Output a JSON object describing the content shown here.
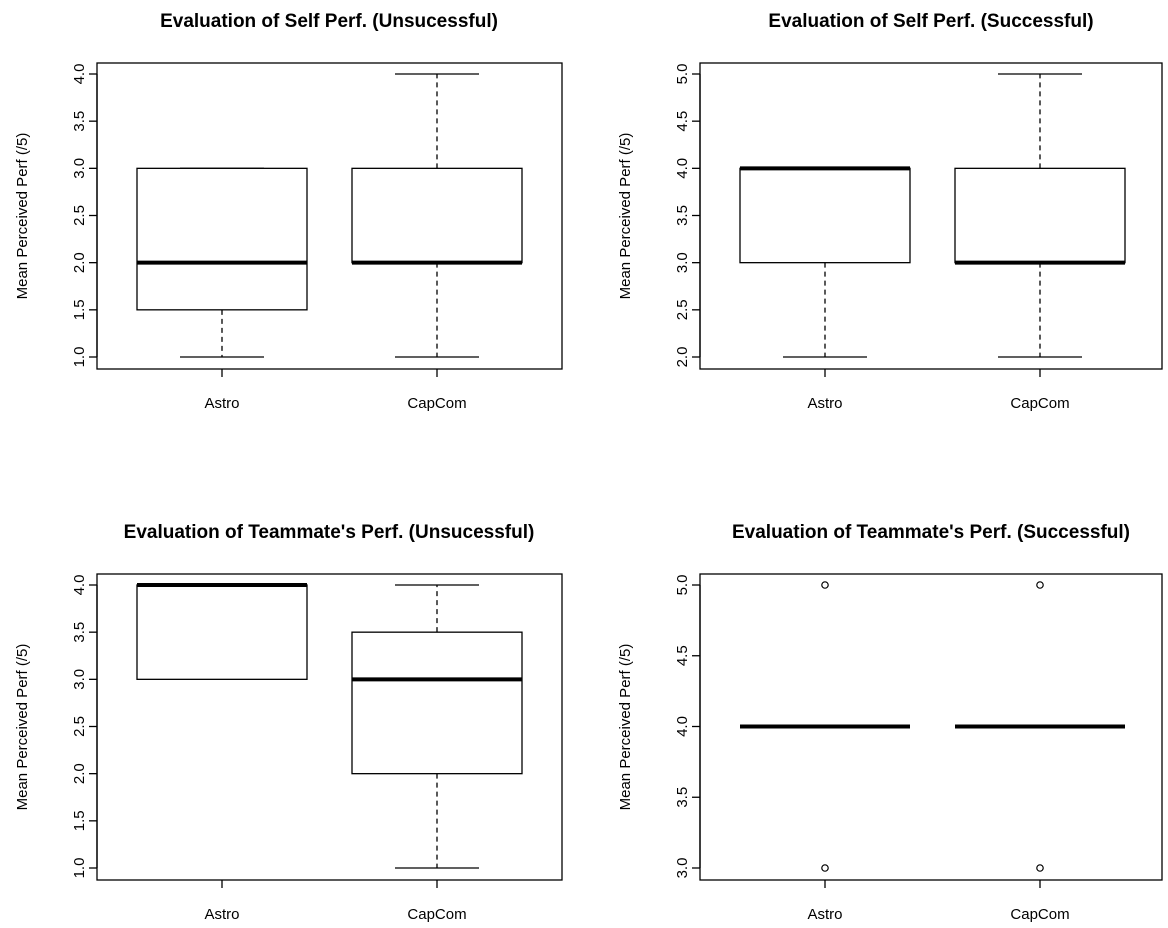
{
  "figure": {
    "panels": [
      {
        "title": "Evaluation of Self Perf. (Unsucessful)",
        "ylabel": "Mean Perceived Perf (/5)"
      },
      {
        "title": "Evaluation of Self Perf. (Successful)",
        "ylabel": "Mean Perceived Perf (/5)"
      },
      {
        "title": "Evaluation of Teammate's Perf. (Unsucessful)",
        "ylabel": "Mean Perceived Perf (/5)"
      },
      {
        "title": "Evaluation of Teammate's Perf. (Successful)",
        "ylabel": "Mean Perceived Perf (/5)"
      }
    ]
  },
  "chart_data": [
    {
      "type": "boxplot",
      "title": "Evaluation of Self Perf. (Unsucessful)",
      "xlabel": "",
      "ylabel": "Mean Perceived Perf (/5)",
      "categories": [
        "Astro",
        "CapCom"
      ],
      "ylim": [
        1.0,
        4.0
      ],
      "yticks": [
        "1.0",
        "1.5",
        "2.0",
        "2.5",
        "3.0",
        "3.5",
        "4.0"
      ],
      "boxes": [
        {
          "category": "Astro",
          "whisker_low": 1.0,
          "q1": 1.5,
          "median": 2.0,
          "q3": 3.0,
          "whisker_high": 3.0,
          "outliers": []
        },
        {
          "category": "CapCom",
          "whisker_low": 1.0,
          "q1": 2.0,
          "median": 2.0,
          "q3": 3.0,
          "whisker_high": 4.0,
          "outliers": []
        }
      ]
    },
    {
      "type": "boxplot",
      "title": "Evaluation of Self Perf. (Successful)",
      "xlabel": "",
      "ylabel": "Mean Perceived Perf (/5)",
      "categories": [
        "Astro",
        "CapCom"
      ],
      "ylim": [
        2.0,
        5.0
      ],
      "yticks": [
        "2.0",
        "2.5",
        "3.0",
        "3.5",
        "4.0",
        "4.5",
        "5.0"
      ],
      "boxes": [
        {
          "category": "Astro",
          "whisker_low": 2.0,
          "q1": 3.0,
          "median": 4.0,
          "q3": 4.0,
          "whisker_high": 4.0,
          "outliers": []
        },
        {
          "category": "CapCom",
          "whisker_low": 2.0,
          "q1": 3.0,
          "median": 3.0,
          "q3": 4.0,
          "whisker_high": 5.0,
          "outliers": []
        }
      ]
    },
    {
      "type": "boxplot",
      "title": "Evaluation of Teammate's Perf. (Unsucessful)",
      "xlabel": "",
      "ylabel": "Mean Perceived Perf (/5)",
      "categories": [
        "Astro",
        "CapCom"
      ],
      "ylim": [
        1.0,
        4.0
      ],
      "yticks": [
        "1.0",
        "1.5",
        "2.0",
        "2.5",
        "3.0",
        "3.5",
        "4.0"
      ],
      "boxes": [
        {
          "category": "Astro",
          "whisker_low": 3.0,
          "q1": 3.0,
          "median": 4.0,
          "q3": 4.0,
          "whisker_high": 4.0,
          "outliers": []
        },
        {
          "category": "CapCom",
          "whisker_low": 1.0,
          "q1": 2.0,
          "median": 3.0,
          "q3": 3.5,
          "whisker_high": 4.0,
          "outliers": []
        }
      ]
    },
    {
      "type": "boxplot",
      "title": "Evaluation of Teammate's Perf. (Successful)",
      "xlabel": "",
      "ylabel": "Mean Perceived Perf (/5)",
      "categories": [
        "Astro",
        "CapCom"
      ],
      "ylim": [
        3.0,
        5.0
      ],
      "yticks": [
        "3.0",
        "3.5",
        "4.0",
        "4.5",
        "5.0"
      ],
      "boxes": [
        {
          "category": "Astro",
          "whisker_low": 4.0,
          "q1": 4.0,
          "median": 4.0,
          "q3": 4.0,
          "whisker_high": 4.0,
          "outliers": [
            5.0,
            3.0
          ]
        },
        {
          "category": "CapCom",
          "whisker_low": 4.0,
          "q1": 4.0,
          "median": 4.0,
          "q3": 4.0,
          "whisker_high": 4.0,
          "outliers": [
            5.0,
            3.0
          ]
        }
      ]
    }
  ]
}
